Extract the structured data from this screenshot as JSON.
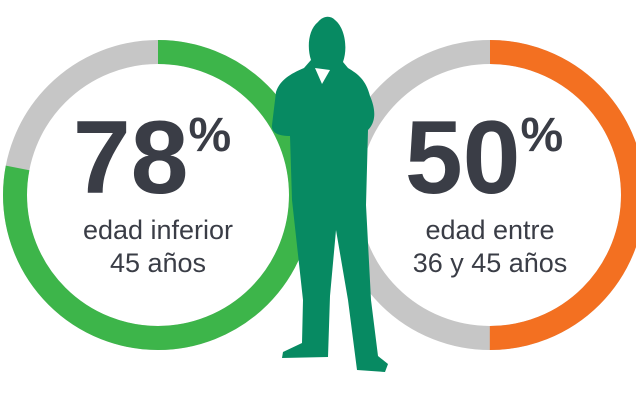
{
  "chart_data": [
    {
      "type": "donut",
      "value": 78,
      "unit": "%",
      "ylim": [
        0,
        100
      ],
      "label": [
        "edad inferior",
        "45 años"
      ],
      "color": "#3db54a",
      "track_color": "#c6c6c6"
    },
    {
      "type": "donut",
      "value": 50,
      "unit": "%",
      "ylim": [
        0,
        100
      ],
      "label": [
        "edad entre",
        "36 y 45 años"
      ],
      "color": "#f37021",
      "track_color": "#c6c6c6"
    }
  ]
}
